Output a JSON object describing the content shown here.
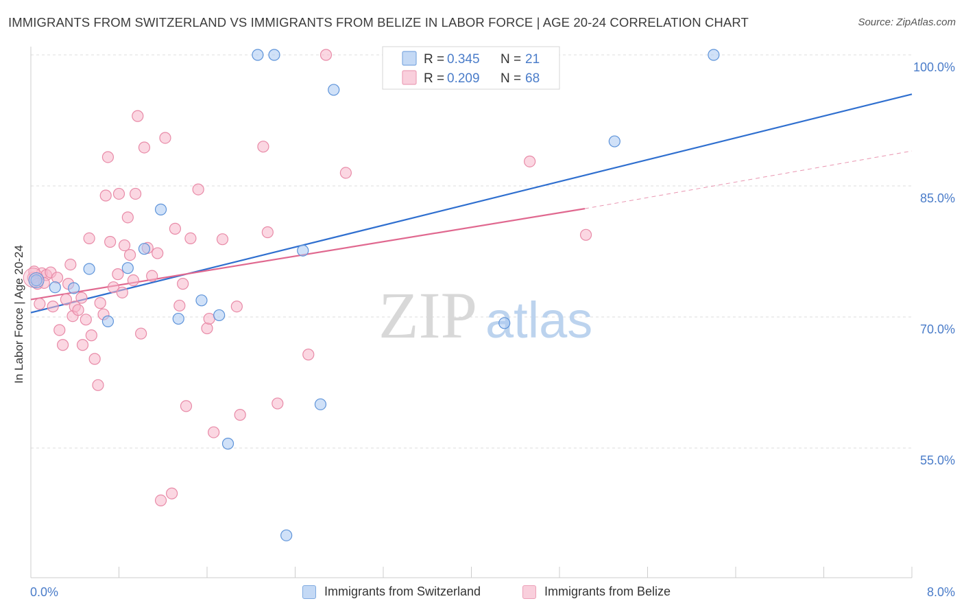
{
  "title": "IMMIGRANTS FROM SWITZERLAND VS IMMIGRANTS FROM BELIZE IN LABOR FORCE | AGE 20-24 CORRELATION CHART",
  "source": "Source: ZipAtlas.com",
  "watermark": {
    "zip": "ZIP",
    "atlas": "atlas"
  },
  "colors": {
    "switzerland_fill": "#a9c8f2",
    "switzerland_stroke": "#5d93d9",
    "switzerland_line": "#2f6fcf",
    "belize_fill": "#f7b7cb",
    "belize_stroke": "#e88aa7",
    "belize_line": "#e0688f",
    "axis_text": "#4a7cc9",
    "grid": "#dddddd"
  },
  "legend": {
    "rows": [
      {
        "r_label": "R =",
        "r_value": "0.345",
        "n_label": "N =",
        "n_value": "21"
      },
      {
        "r_label": "R =",
        "r_value": "0.209",
        "n_label": "N =",
        "n_value": "68"
      }
    ]
  },
  "chart_data": {
    "type": "scatter",
    "title": "IMMIGRANTS FROM SWITZERLAND VS IMMIGRANTS FROM BELIZE IN LABOR FORCE | AGE 20-24 CORRELATION CHART",
    "xlabel": "",
    "ylabel": "In Labor Force | Age 20-24",
    "xlim": [
      0,
      8
    ],
    "ylim": [
      39,
      101.5
    ],
    "x_tick_labels": [
      "0.0%",
      "8.0%"
    ],
    "y_ticks": [
      55,
      70,
      85,
      100
    ],
    "y_tick_labels": [
      "55.0%",
      "70.0%",
      "85.0%",
      "100.0%"
    ],
    "grid": "horizontal dashed",
    "legend_position": "top-center",
    "series": [
      {
        "name": "Immigrants from Switzerland",
        "points": [
          [
            0.05,
            74.2
          ],
          [
            0.22,
            73.4
          ],
          [
            0.39,
            73.3
          ],
          [
            0.53,
            75.5
          ],
          [
            0.7,
            69.5
          ],
          [
            0.88,
            75.6
          ],
          [
            1.03,
            77.8
          ],
          [
            1.18,
            82.3
          ],
          [
            1.34,
            69.8
          ],
          [
            1.55,
            71.9
          ],
          [
            1.71,
            70.2
          ],
          [
            1.79,
            55.5
          ],
          [
            2.06,
            100
          ],
          [
            2.21,
            100
          ],
          [
            2.32,
            45
          ],
          [
            2.47,
            77.6
          ],
          [
            2.63,
            60
          ],
          [
            2.75,
            96
          ],
          [
            4.3,
            69.3
          ],
          [
            5.3,
            90.1
          ],
          [
            6.2,
            100
          ]
        ],
        "trend": {
          "x": [
            0,
            8
          ],
          "y": [
            70.5,
            95.5
          ]
        }
      },
      {
        "name": "Immigrants from Belize",
        "points": [
          [
            0.02,
            74.5
          ],
          [
            0.06,
            73.8
          ],
          [
            0.08,
            71.5
          ],
          [
            0.1,
            75
          ],
          [
            0.14,
            74.8
          ],
          [
            0.18,
            75.1
          ],
          [
            0.2,
            71.2
          ],
          [
            0.24,
            74.5
          ],
          [
            0.26,
            68.5
          ],
          [
            0.29,
            66.8
          ],
          [
            0.32,
            72
          ],
          [
            0.34,
            73.8
          ],
          [
            0.36,
            76
          ],
          [
            0.38,
            70.1
          ],
          [
            0.4,
            71.2
          ],
          [
            0.43,
            70.8
          ],
          [
            0.46,
            72.2
          ],
          [
            0.47,
            66.8
          ],
          [
            0.5,
            69.7
          ],
          [
            0.53,
            79
          ],
          [
            0.55,
            67.9
          ],
          [
            0.58,
            65.2
          ],
          [
            0.61,
            62.2
          ],
          [
            0.63,
            71.6
          ],
          [
            0.66,
            70.3
          ],
          [
            0.68,
            83.9
          ],
          [
            0.7,
            88.3
          ],
          [
            0.72,
            78.6
          ],
          [
            0.75,
            73.4
          ],
          [
            0.79,
            74.9
          ],
          [
            0.8,
            84.1
          ],
          [
            0.83,
            72.8
          ],
          [
            0.85,
            78.2
          ],
          [
            0.88,
            81.4
          ],
          [
            0.9,
            77.1
          ],
          [
            0.93,
            74.2
          ],
          [
            0.95,
            84.1
          ],
          [
            0.97,
            93
          ],
          [
            1.0,
            68.1
          ],
          [
            1.03,
            89.4
          ],
          [
            1.06,
            77.9
          ],
          [
            1.1,
            74.7
          ],
          [
            1.15,
            77.3
          ],
          [
            1.18,
            49
          ],
          [
            1.22,
            90.5
          ],
          [
            1.28,
            49.8
          ],
          [
            1.31,
            80.1
          ],
          [
            1.35,
            71.3
          ],
          [
            1.38,
            73.8
          ],
          [
            1.41,
            59.8
          ],
          [
            1.45,
            79
          ],
          [
            1.52,
            84.6
          ],
          [
            1.6,
            68.7
          ],
          [
            1.62,
            69.8
          ],
          [
            1.66,
            56.8
          ],
          [
            1.74,
            78.9
          ],
          [
            1.87,
            71.2
          ],
          [
            1.9,
            58.8
          ],
          [
            2.11,
            89.5
          ],
          [
            2.15,
            79.7
          ],
          [
            2.24,
            60.1
          ],
          [
            2.52,
            65.7
          ],
          [
            2.68,
            100
          ],
          [
            2.86,
            86.5
          ],
          [
            4.53,
            87.8
          ],
          [
            5.04,
            79.4
          ],
          [
            0.03,
            75.2
          ],
          [
            0.12,
            73.9
          ]
        ],
        "trend": {
          "x": [
            0,
            5.03
          ],
          "y": [
            72.0,
            82.4
          ]
        },
        "trend_extension": {
          "x": [
            5.03,
            8
          ],
          "y": [
            82.4,
            89.0
          ]
        }
      }
    ]
  },
  "x_axis": {
    "min_label": "0.0%",
    "max_label": "8.0%"
  },
  "bottom_legend": [
    {
      "label": "Immigrants from Switzerland"
    },
    {
      "label": "Immigrants from Belize"
    }
  ]
}
